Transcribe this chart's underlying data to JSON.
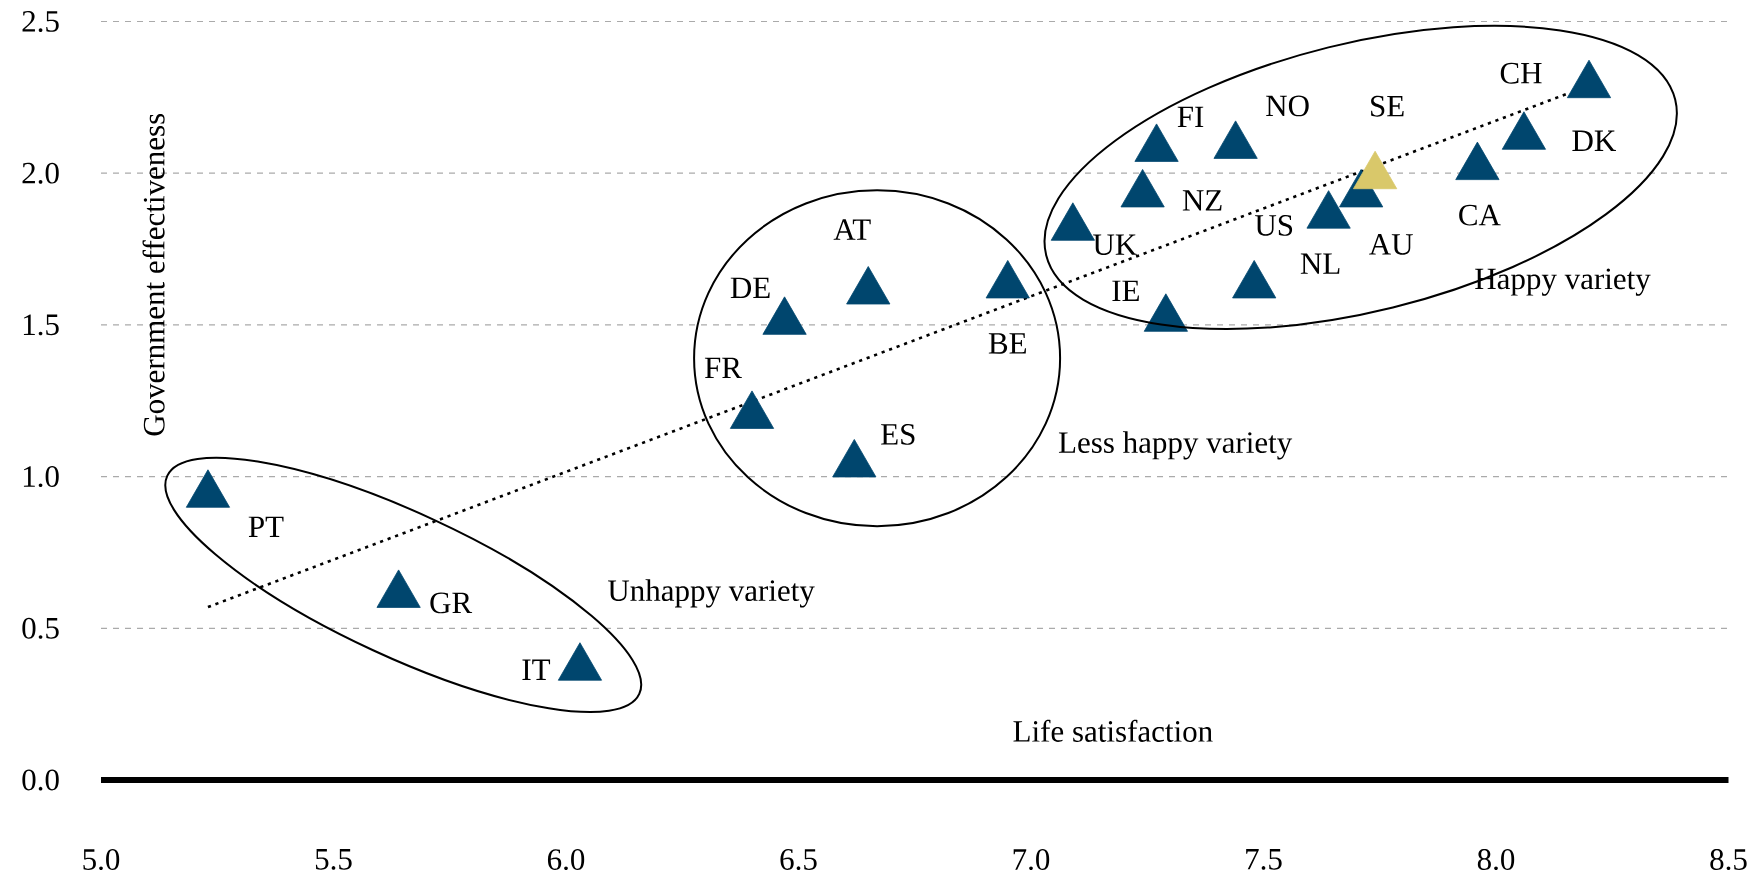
{
  "chart_data": {
    "type": "scatter",
    "xlabel": "Life satisfaction",
    "ylabel": "Government effectiveness",
    "xlim": [
      5.0,
      8.5
    ],
    "ylim": [
      0.0,
      2.5
    ],
    "xticks": [
      {
        "value": 5.0,
        "label": "5.0"
      },
      {
        "value": 5.5,
        "label": "5.5"
      },
      {
        "value": 6.0,
        "label": "6.0"
      },
      {
        "value": 6.5,
        "label": "6.5"
      },
      {
        "value": 7.0,
        "label": "7.0"
      },
      {
        "value": 7.5,
        "label": "7.5"
      },
      {
        "value": 8.0,
        "label": "8.0"
      },
      {
        "value": 8.5,
        "label": "8.5"
      }
    ],
    "yticks": [
      {
        "value": 0.0,
        "label": "0.0"
      },
      {
        "value": 0.5,
        "label": "0.5"
      },
      {
        "value": 1.0,
        "label": "1.0"
      },
      {
        "value": 1.5,
        "label": "1.5"
      },
      {
        "value": 2.0,
        "label": "2.0"
      },
      {
        "value": 2.5,
        "label": "2.5"
      }
    ],
    "grid": "y",
    "marker": "triangle",
    "annotations": [
      "Unhappy variety",
      "Less happy variety",
      "Happy variety"
    ],
    "series": [
      {
        "x": [
          5.23,
          5.64,
          6.03,
          6.4,
          6.62,
          6.47,
          6.65,
          6.95,
          7.29,
          7.09,
          7.24,
          7.27,
          7.44,
          7.48,
          7.64,
          7.71,
          7.74,
          7.96,
          8.06,
          8.2
        ],
        "values": [
          0.94,
          0.61,
          0.37,
          1.2,
          1.04,
          1.51,
          1.61,
          1.63,
          1.52,
          1.82,
          1.93,
          2.08,
          2.09,
          1.63,
          1.86,
          1.93,
          1.99,
          2.02,
          2.12,
          2.29
        ],
        "value_labels": [
          "PT",
          "GR",
          "IT",
          "FR",
          "ES",
          "DE",
          "AT",
          "BE",
          "IE",
          "UK",
          "NZ",
          "FI",
          "NO",
          "US",
          "NL",
          "AU",
          "SE",
          "CA",
          "DK",
          "CH"
        ],
        "colors": [
          "#00466e",
          "#00466e",
          "#00466e",
          "#00466e",
          "#00466e",
          "#00466e",
          "#00466e",
          "#00466e",
          "#00466e",
          "#00466e",
          "#00466e",
          "#00466e",
          "#00466e",
          "#00466e",
          "#00466e",
          "#00466e",
          "#d9c86a",
          "#00466e",
          "#00466e",
          "#00466e"
        ]
      },
      {
        "type": "line",
        "x": [
          5.23,
          8.15
        ],
        "values": [
          0.57,
          2.26
        ],
        "color": "#000000",
        "line_style": "dotted",
        "marker": "none"
      }
    ]
  }
}
